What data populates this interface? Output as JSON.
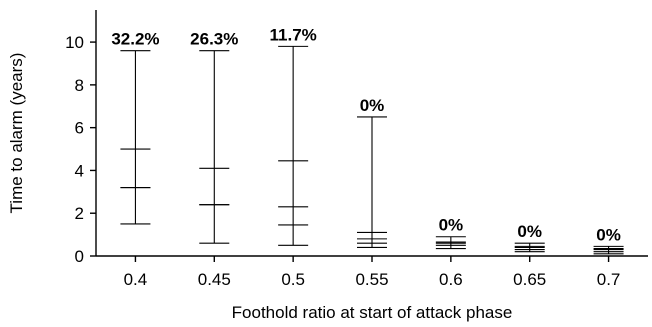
{
  "chart_data": {
    "type": "box",
    "xlabel": "Foothold ratio at start of attack phase",
    "ylabel": "Time to alarm (years)",
    "ylim": [
      0,
      11.5
    ],
    "yticks": [
      0,
      2,
      4,
      6,
      8,
      10
    ],
    "grid": false,
    "categories": [
      "0.4",
      "0.45",
      "0.5",
      "0.55",
      "0.6",
      "0.65",
      "0.7"
    ],
    "series": [
      {
        "stats": [
          {
            "min": 1.5,
            "q1": 3.2,
            "median": 3.2,
            "q3": 5.0,
            "max": 9.6
          },
          {
            "min": 0.6,
            "q1": 2.4,
            "median": 2.4,
            "q3": 4.1,
            "max": 9.6
          },
          {
            "min": 0.5,
            "q1": 1.45,
            "median": 2.3,
            "q3": 4.45,
            "max": 9.8
          },
          {
            "min": 0.4,
            "q1": 0.6,
            "median": 0.8,
            "q3": 1.1,
            "max": 6.5
          },
          {
            "min": 0.35,
            "q1": 0.5,
            "median": 0.6,
            "q3": 0.65,
            "max": 0.9
          },
          {
            "min": 0.2,
            "q1": 0.3,
            "median": 0.4,
            "q3": 0.45,
            "max": 0.6
          },
          {
            "min": 0.1,
            "q1": 0.2,
            "median": 0.3,
            "q3": 0.35,
            "max": 0.45
          }
        ]
      }
    ],
    "annotations": [
      "32.2%",
      "26.3%",
      "11.7%",
      "0%",
      "0%",
      "0%",
      "0%"
    ]
  }
}
